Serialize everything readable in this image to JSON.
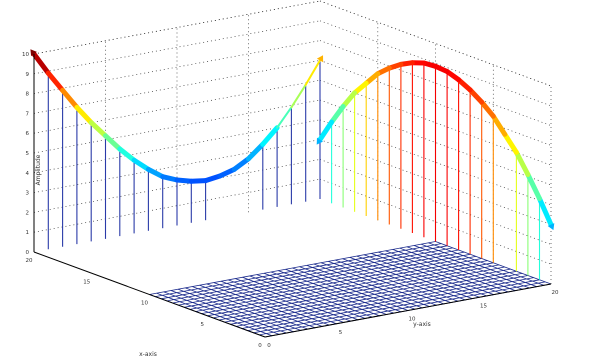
{
  "chart_data": {
    "type": "line",
    "projection": "3d",
    "grid": true,
    "legend": "none",
    "axes": {
      "x": {
        "label": "x-axis",
        "range": [
          0,
          20
        ],
        "ticks": [
          "0",
          "5",
          "10",
          "15",
          "20"
        ]
      },
      "y": {
        "label": "y-axis",
        "range": [
          0,
          20
        ],
        "ticks": [
          "0",
          "5",
          "10",
          "15",
          "20"
        ]
      },
      "z": {
        "label": "Amplitude",
        "range": [
          0,
          10
        ],
        "ticks": [
          "0",
          "1",
          "2",
          "3",
          "4",
          "5",
          "6",
          "7",
          "8",
          "9",
          "10"
        ]
      }
    },
    "colormap": "jet",
    "series": [
      {
        "plane": "x",
        "t": [
          0,
          1,
          2,
          3,
          4,
          5,
          6,
          7,
          8,
          9,
          10,
          11,
          12,
          13,
          14,
          15,
          16,
          17,
          18,
          19,
          20
        ],
        "z": [
          3.0,
          4.1,
          5.1,
          6.0,
          6.7,
          7.4,
          7.9,
          8.3,
          8.6,
          8.8,
          8.85,
          8.8,
          8.6,
          8.3,
          7.9,
          7.4,
          6.7,
          6.0,
          5.1,
          4.1,
          3.0
        ],
        "stems": [
          1,
          2,
          3,
          5,
          6,
          7,
          8,
          9,
          10,
          11,
          12,
          13,
          14,
          15,
          16,
          17,
          18,
          19
        ]
      },
      {
        "plane": "y",
        "t": [
          0,
          1,
          2,
          3,
          4,
          5,
          6,
          7,
          8,
          9,
          10,
          11,
          12,
          13,
          14,
          15,
          16,
          17,
          18,
          19,
          20
        ],
        "z": [
          10.0,
          8.9,
          7.9,
          6.9,
          6.0,
          5.2,
          4.4,
          3.7,
          3.1,
          2.6,
          2.3,
          2.1,
          2.0,
          2.1,
          2.3,
          2.7,
          3.3,
          4.0,
          4.9,
          5.9,
          7.0
        ],
        "stems": [
          1,
          2,
          3,
          4,
          5,
          6,
          7,
          8,
          9,
          10,
          11,
          12,
          16,
          17,
          18,
          19,
          20
        ]
      }
    ]
  }
}
